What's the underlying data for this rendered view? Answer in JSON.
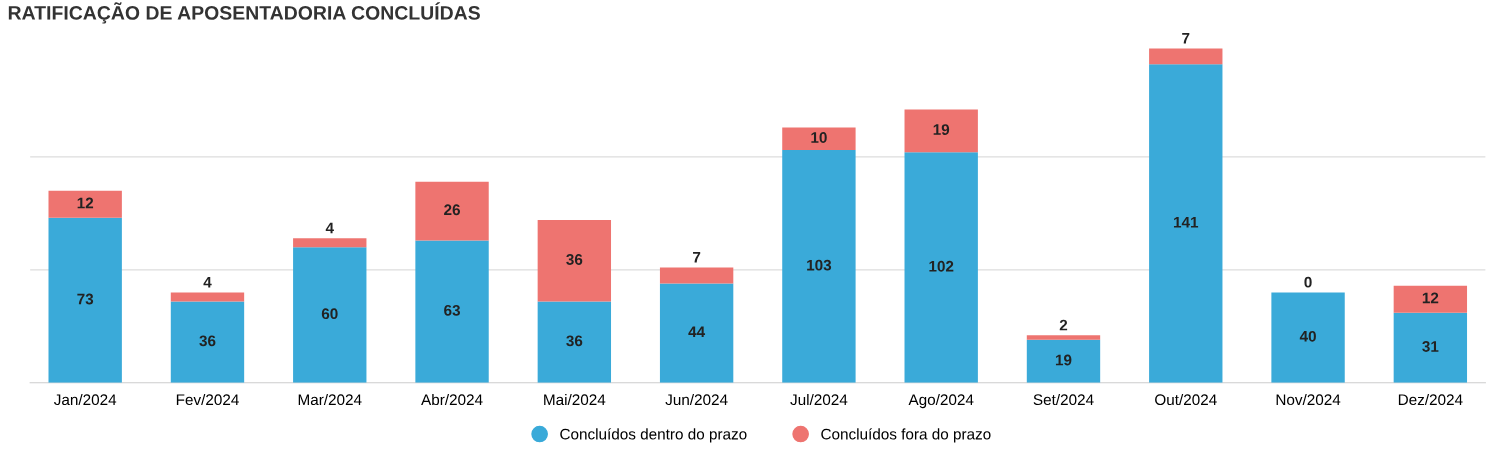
{
  "chart_data": {
    "type": "bar",
    "stacked": true,
    "title": "RATIFICAÇÃO DE APOSENTADORIA CONCLUÍDAS",
    "categories": [
      "Jan/2024",
      "Fev/2024",
      "Mar/2024",
      "Abr/2024",
      "Mai/2024",
      "Jun/2024",
      "Jul/2024",
      "Ago/2024",
      "Set/2024",
      "Out/2024",
      "Nov/2024",
      "Dez/2024"
    ],
    "series": [
      {
        "name": "Concluídos dentro do prazo",
        "color": "#3aaad9",
        "values": [
          73,
          36,
          60,
          63,
          36,
          44,
          103,
          102,
          19,
          141,
          40,
          31
        ]
      },
      {
        "name": "Concluídos fora do prazo",
        "color": "#ee7470",
        "values": [
          12,
          4,
          4,
          26,
          36,
          7,
          10,
          19,
          2,
          7,
          0,
          12
        ]
      }
    ],
    "ref_lines": [
      {
        "axis": "y",
        "value": 50,
        "color": "#dddddd"
      },
      {
        "axis": "y",
        "value": 100,
        "color": "#dddddd"
      }
    ],
    "tick_labels": "x",
    "legend": "bottom",
    "data_labels": true
  }
}
